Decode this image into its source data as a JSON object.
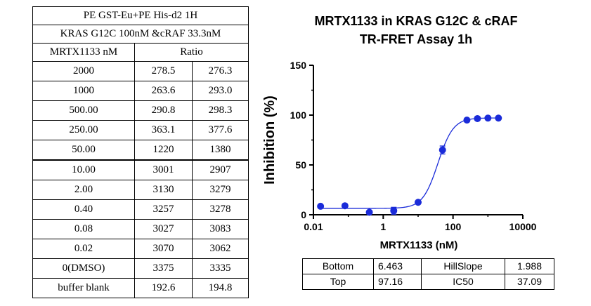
{
  "table": {
    "header_line1": "PE GST-Eu+PE His-d2 1H",
    "header_line2": "KRAS G12C 100nM &cRAF 33.3nM",
    "col_conc": "MRTX1133 nM",
    "col_ratio": "Ratio",
    "rows": [
      {
        "conc": "2000",
        "r1": "278.5",
        "r2": "276.3"
      },
      {
        "conc": "1000",
        "r1": "263.6",
        "r2": "293.0"
      },
      {
        "conc": "500.00",
        "r1": "290.8",
        "r2": "298.3"
      },
      {
        "conc": "250.00",
        "r1": "363.1",
        "r2": "377.6"
      },
      {
        "conc": "50.00",
        "r1": "1220",
        "r2": "1380"
      },
      {
        "conc": "10.00",
        "r1": "3001",
        "r2": "2907"
      },
      {
        "conc": "2.00",
        "r1": "3130",
        "r2": "3279"
      },
      {
        "conc": "0.40",
        "r1": "3257",
        "r2": "3278"
      },
      {
        "conc": "0.08",
        "r1": "3027",
        "r2": "3083"
      },
      {
        "conc": "0.02",
        "r1": "3070",
        "r2": "3062"
      },
      {
        "conc": "0(DMSO)",
        "r1": "3375",
        "r2": "3335"
      },
      {
        "conc": "buffer blank",
        "r1": "192.6",
        "r2": "194.8"
      }
    ]
  },
  "chart_data": {
    "type": "scatter",
    "title_line1": "MRTX1133 in KRAS G12C & cRAF",
    "title_line2": "TR-FRET Assay 1h",
    "xlabel": "MRTX1133 (nM)",
    "ylabel": "Inhibition (%)",
    "xscale": "log",
    "xlim": [
      0.01,
      10000
    ],
    "ylim": [
      0,
      150
    ],
    "x_ticks": [
      0.01,
      1,
      100,
      10000
    ],
    "x_tick_labels": [
      "0.01",
      "1",
      "100",
      "10000"
    ],
    "y_ticks": [
      0,
      50,
      100,
      150
    ],
    "y_tick_labels": [
      "0",
      "50",
      "100",
      "150"
    ],
    "points": [
      {
        "x": 0.016,
        "y": 8.5,
        "err": 1.0
      },
      {
        "x": 0.08,
        "y": 9.0,
        "err": 1.0
      },
      {
        "x": 0.4,
        "y": 2.5,
        "err": 1.0
      },
      {
        "x": 2.0,
        "y": 4.0,
        "err": 3.5
      },
      {
        "x": 10.0,
        "y": 12.5,
        "err": 1.0
      },
      {
        "x": 50.0,
        "y": 65.0,
        "err": 4.0
      },
      {
        "x": 250.0,
        "y": 95.0,
        "err": 1.5
      },
      {
        "x": 500.0,
        "y": 96.5,
        "err": 1.5
      },
      {
        "x": 1000.0,
        "y": 97.0,
        "err": 1.0
      },
      {
        "x": 2000.0,
        "y": 97.0,
        "err": 1.0
      }
    ],
    "fit": {
      "bottom": 6.463,
      "top": 97.16,
      "hillslope": 1.988,
      "ic50": 37.09
    },
    "color": "#1a2bd9"
  },
  "fit_table": {
    "bottom_label": "Bottom",
    "bottom_value": "6.463",
    "hillslope_label": "HillSlope",
    "hillslope_value": "1.988",
    "top_label": "Top",
    "top_value": "97.16",
    "ic50_label": "IC50",
    "ic50_value": "37.09"
  }
}
